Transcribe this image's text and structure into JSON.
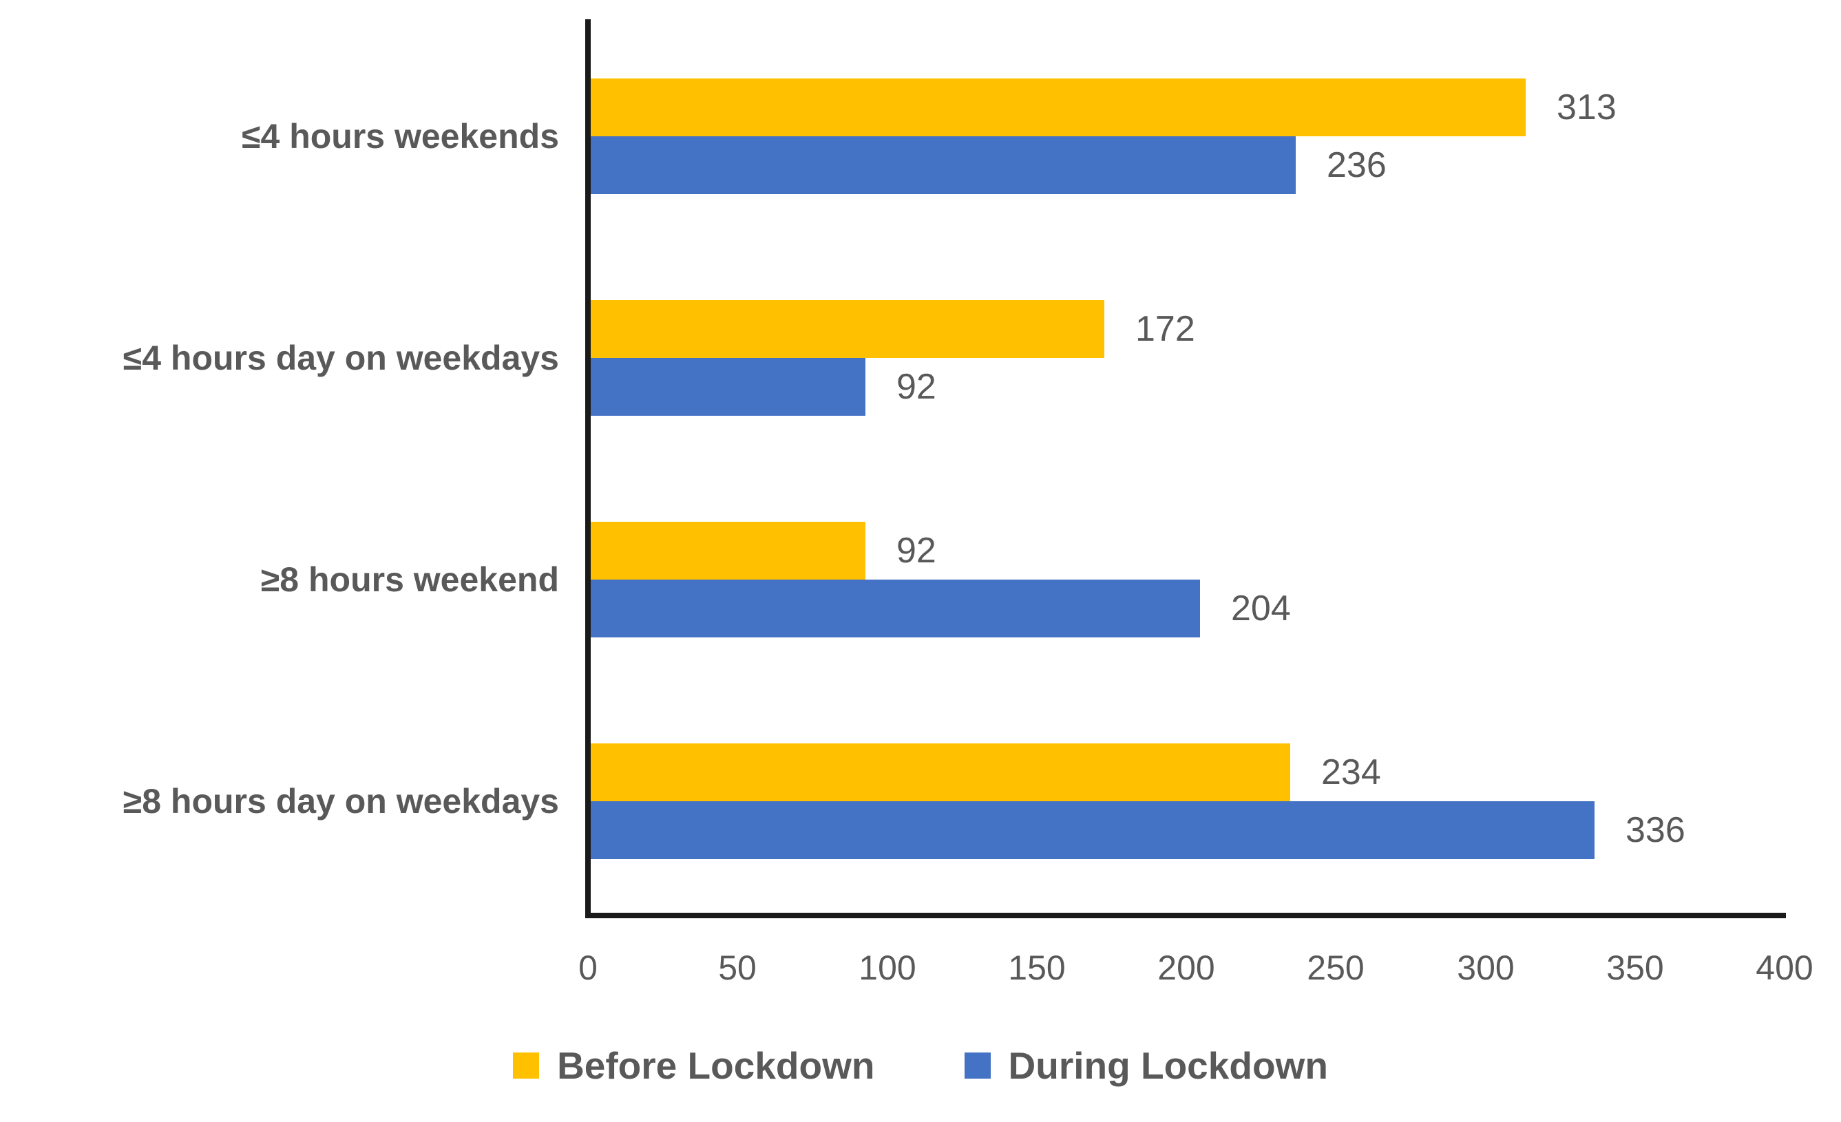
{
  "chart_data": {
    "type": "bar",
    "orientation": "horizontal",
    "title": "",
    "categories": [
      "≤4 hours weekends",
      "≤4 hours day on weekdays",
      "≥8 hours weekend",
      "≥8 hours day on weekdays"
    ],
    "series": [
      {
        "name": "Before Lockdown",
        "color": "#FFC000",
        "values": [
          313,
          172,
          92,
          234
        ]
      },
      {
        "name": "During Lockdown",
        "color": "#4472C4",
        "values": [
          236,
          92,
          204,
          336
        ]
      }
    ],
    "xlim": [
      0,
      400
    ],
    "x_ticks": [
      0,
      50,
      100,
      150,
      200,
      250,
      300,
      350,
      400
    ],
    "grid": false,
    "data_labels": true,
    "legend_position": "bottom",
    "axis_color": "#1a1a1a",
    "text_color": "#595959"
  }
}
